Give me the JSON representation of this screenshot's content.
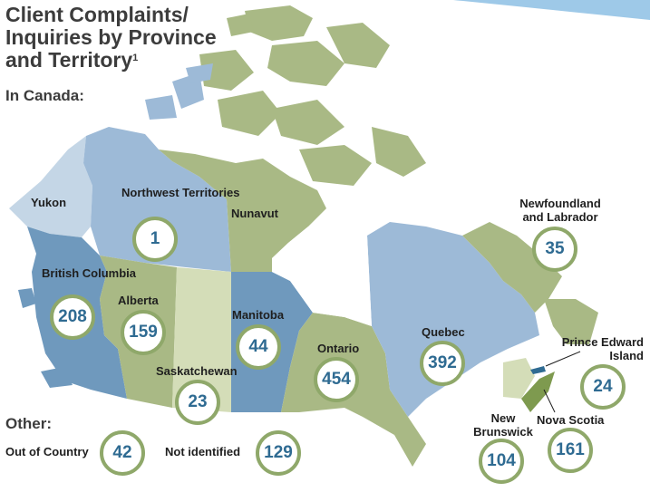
{
  "title": "Client Complaints/ Inquiries by Province and Territory",
  "title_footnote": "1",
  "in_canada_label": "In Canada:",
  "other_label": "Other:",
  "colors": {
    "dark_blue": "#6f99bd",
    "mid_blue": "#9dbad7",
    "light_blue": "#c4d6e6",
    "green": "#a9b985",
    "light_green": "#d4ddb8",
    "dark_green": "#7e9a4f",
    "circle_border": "#8fa86a",
    "value_text": "#2f6b92"
  },
  "regions": [
    {
      "name": "Yukon",
      "value": ""
    },
    {
      "name": "Northwest Territories",
      "value": "1"
    },
    {
      "name": "Nunavut",
      "value": ""
    },
    {
      "name": "British Columbia",
      "value": "208"
    },
    {
      "name": "Alberta",
      "value": "159"
    },
    {
      "name": "Saskatchewan",
      "value": "23"
    },
    {
      "name": "Manitoba",
      "value": "44"
    },
    {
      "name": "Ontario",
      "value": "454"
    },
    {
      "name": "Quebec",
      "value": "392"
    },
    {
      "name": "Newfoundland and Labrador",
      "value": "35"
    },
    {
      "name": "Prince Edward Island",
      "value": "24"
    },
    {
      "name": "Nova Scotia",
      "value": "161"
    },
    {
      "name": "New Brunswick",
      "value": "104"
    }
  ],
  "other": [
    {
      "name": "Out of Country",
      "value": "42"
    },
    {
      "name": "Not identified",
      "value": "129"
    }
  ]
}
